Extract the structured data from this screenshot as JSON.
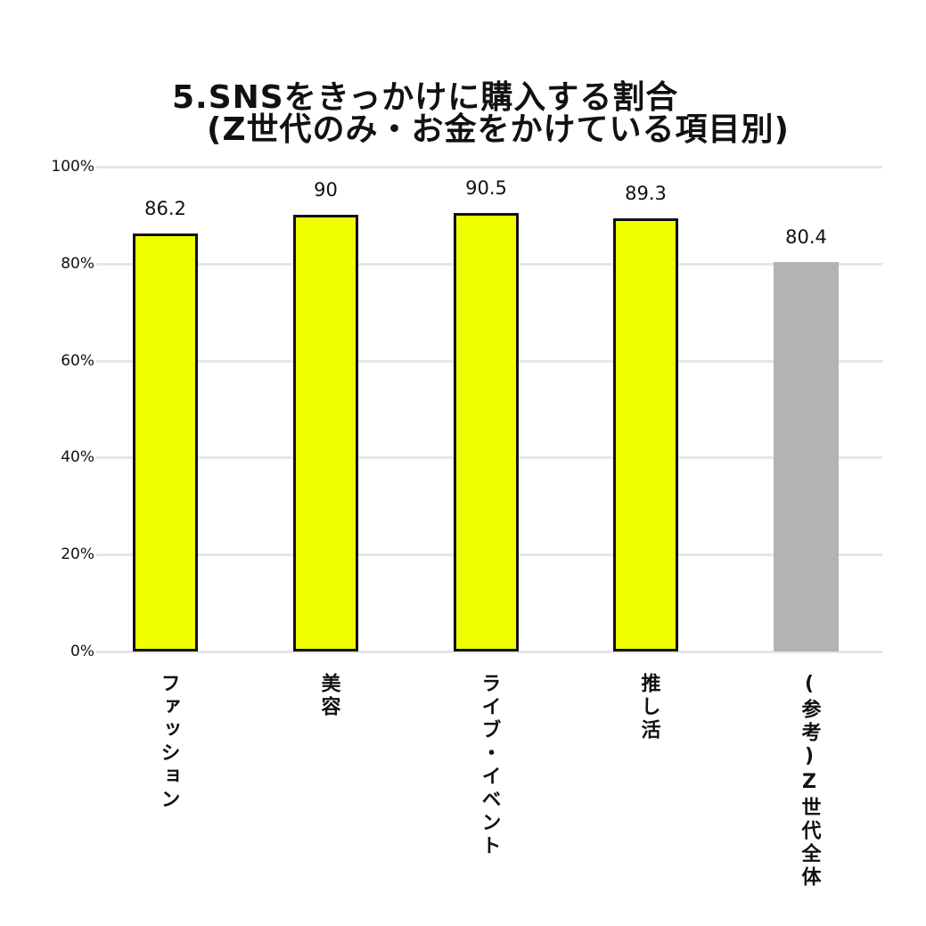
{
  "chart_data": {
    "type": "bar",
    "title": "5.SNSをきっかけに購入する割合",
    "subtitle": "(Z世代のみ・お金をかけている項目別)",
    "categories": [
      "ファッション",
      "美容",
      "ライブ・イベント",
      "推し活",
      "(参考)Z世代全体"
    ],
    "values": [
      86.2,
      90,
      90.5,
      89.3,
      80.4
    ],
    "value_labels": [
      "86.2",
      "90",
      "90.5",
      "89.3",
      "80.4"
    ],
    "bar_colors": [
      "#f0ff00",
      "#f0ff00",
      "#f0ff00",
      "#f0ff00",
      "#b3b3b3"
    ],
    "xlabel": "",
    "ylabel": "",
    "ylim": [
      0,
      100
    ],
    "yticks": [
      "0%",
      "20%",
      "40%",
      "60%",
      "80%",
      "100%"
    ],
    "grid": true,
    "legend": "none"
  },
  "title": {
    "line1": "5.SNSをきっかけに購入する割合",
    "line2": "(Z世代のみ・お金をかけている項目別)"
  },
  "axis": {
    "yticks": [
      "0%",
      "20%",
      "40%",
      "60%",
      "80%",
      "100%"
    ]
  },
  "bars": [
    {
      "label": "ファッション",
      "value": "86.2"
    },
    {
      "label": "美容",
      "value": "90"
    },
    {
      "label": "ライブ・イベント",
      "value": "90.5"
    },
    {
      "label": "推し活",
      "value": "89.3"
    },
    {
      "label": "(参考)Z世代全体",
      "value": "80.4"
    }
  ],
  "colors": {
    "highlight": "#f0ff00",
    "reference": "#b3b3b3",
    "grid": "#e6e6e6"
  }
}
